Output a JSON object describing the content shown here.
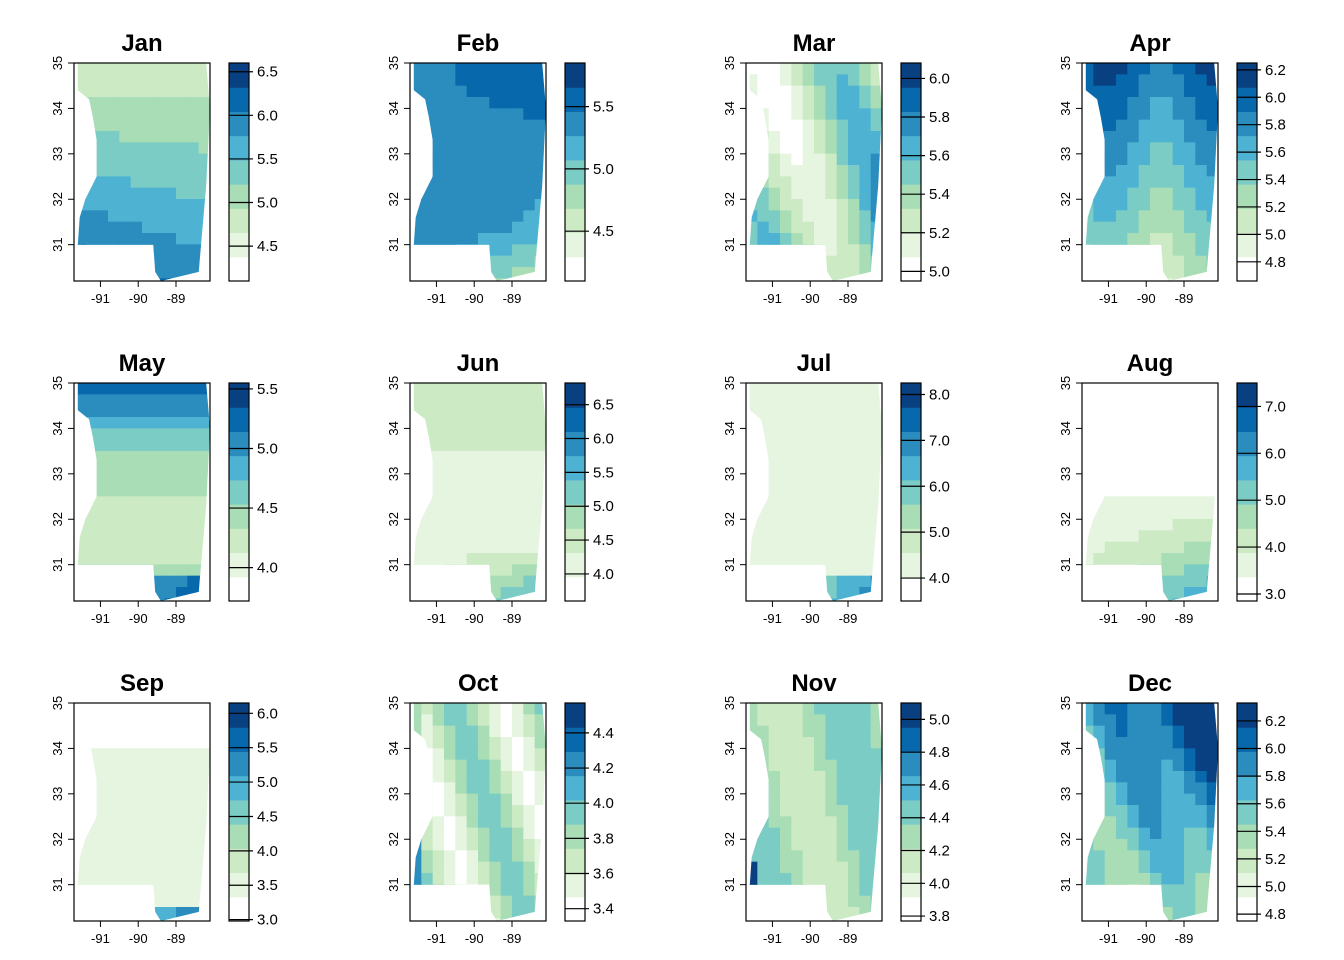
{
  "chart_data": [
    {
      "type": "heatmap",
      "title": "Jan",
      "legend_ticks": [
        "6.5",
        "6.0",
        "5.5",
        "5.0",
        "4.5"
      ],
      "legend_range": [
        4.1,
        6.6
      ],
      "x_ticks": [
        "-91",
        "-90",
        "-89"
      ],
      "y_ticks": [
        "35",
        "34",
        "33",
        "32",
        "31"
      ],
      "xlim": [
        -91.7,
        -88.1
      ],
      "ylim": [
        30.2,
        35
      ]
    },
    {
      "type": "heatmap",
      "title": "Feb",
      "legend_ticks": [
        "5.5",
        "5.0",
        "4.5"
      ],
      "legend_range": [
        4.1,
        5.85
      ],
      "x_ticks": [
        "-91",
        "-90",
        "-89"
      ],
      "y_ticks": [
        "35",
        "34",
        "33",
        "32",
        "31"
      ],
      "xlim": [
        -91.7,
        -88.1
      ],
      "ylim": [
        30.2,
        35
      ]
    },
    {
      "type": "heatmap",
      "title": "Mar",
      "legend_ticks": [
        "6.0",
        "5.8",
        "5.6",
        "5.4",
        "5.2",
        "5.0"
      ],
      "legend_range": [
        4.95,
        6.08
      ],
      "x_ticks": [
        "-91",
        "-90",
        "-89"
      ],
      "y_ticks": [
        "35",
        "34",
        "33",
        "32",
        "31"
      ],
      "xlim": [
        -91.7,
        -88.1
      ],
      "ylim": [
        30.2,
        35
      ]
    },
    {
      "type": "heatmap",
      "title": "Apr",
      "legend_ticks": [
        "6.2",
        "6.0",
        "5.8",
        "5.6",
        "5.4",
        "5.2",
        "5.0",
        "4.8"
      ],
      "legend_range": [
        4.66,
        6.25
      ],
      "x_ticks": [
        "-91",
        "-90",
        "-89"
      ],
      "y_ticks": [
        "35",
        "34",
        "33",
        "32",
        "31"
      ],
      "xlim": [
        -91.7,
        -88.1
      ],
      "ylim": [
        30.2,
        35
      ]
    },
    {
      "type": "heatmap",
      "title": "May",
      "legend_ticks": [
        "5.5",
        "5.0",
        "4.5",
        "4.0"
      ],
      "legend_range": [
        3.72,
        5.55
      ],
      "x_ticks": [
        "-91",
        "-90",
        "-89"
      ],
      "y_ticks": [
        "35",
        "34",
        "33",
        "32",
        "31"
      ],
      "xlim": [
        -91.7,
        -88.1
      ],
      "ylim": [
        30.2,
        35
      ]
    },
    {
      "type": "heatmap",
      "title": "Jun",
      "legend_ticks": [
        "6.5",
        "6.0",
        "5.5",
        "5.0",
        "4.5",
        "4.0"
      ],
      "legend_range": [
        3.6,
        6.82
      ],
      "x_ticks": [
        "-91",
        "-90",
        "-89"
      ],
      "y_ticks": [
        "35",
        "34",
        "33",
        "32",
        "31"
      ],
      "xlim": [
        -91.7,
        -88.1
      ],
      "ylim": [
        30.2,
        35
      ]
    },
    {
      "type": "heatmap",
      "title": "Jul",
      "legend_ticks": [
        "8.0",
        "7.0",
        "6.0",
        "5.0",
        "4.0"
      ],
      "legend_range": [
        3.5,
        8.25
      ],
      "x_ticks": [
        "-91",
        "-90",
        "-89"
      ],
      "y_ticks": [
        "35",
        "34",
        "33",
        "32",
        "31"
      ],
      "xlim": [
        -91.7,
        -88.1
      ],
      "ylim": [
        30.2,
        35
      ]
    },
    {
      "type": "heatmap",
      "title": "Aug",
      "legend_ticks": [
        "7.0",
        "6.0",
        "5.0",
        "4.0",
        "3.0"
      ],
      "legend_range": [
        2.85,
        7.5
      ],
      "x_ticks": [
        "-91",
        "-90",
        "-89"
      ],
      "y_ticks": [
        "35",
        "34",
        "33",
        "32",
        "31"
      ],
      "xlim": [
        -91.7,
        -88.1
      ],
      "ylim": [
        30.2,
        35
      ]
    },
    {
      "type": "heatmap",
      "title": "Sep",
      "legend_ticks": [
        "6.0",
        "5.5",
        "5.0",
        "4.5",
        "4.0",
        "3.5",
        "3.0"
      ],
      "legend_range": [
        2.98,
        6.15
      ],
      "x_ticks": [
        "-91",
        "-90",
        "-89"
      ],
      "y_ticks": [
        "35",
        "34",
        "33",
        "32",
        "31"
      ],
      "xlim": [
        -91.7,
        -88.1
      ],
      "ylim": [
        30.2,
        35
      ]
    },
    {
      "type": "heatmap",
      "title": "Oct",
      "legend_ticks": [
        "4.4",
        "4.2",
        "4.0",
        "3.8",
        "3.6",
        "3.4"
      ],
      "legend_range": [
        3.33,
        4.57
      ],
      "x_ticks": [
        "-91",
        "-90",
        "-89"
      ],
      "y_ticks": [
        "35",
        "34",
        "33",
        "32",
        "31"
      ],
      "xlim": [
        -91.7,
        -88.1
      ],
      "ylim": [
        30.2,
        35
      ]
    },
    {
      "type": "heatmap",
      "title": "Nov",
      "legend_ticks": [
        "5.0",
        "4.8",
        "4.6",
        "4.4",
        "4.2",
        "4.0",
        "3.8"
      ],
      "legend_range": [
        3.77,
        5.1
      ],
      "x_ticks": [
        "-91",
        "-90",
        "-89"
      ],
      "y_ticks": [
        "35",
        "34",
        "33",
        "32",
        "31"
      ],
      "xlim": [
        -91.7,
        -88.1
      ],
      "ylim": [
        30.2,
        35
      ]
    },
    {
      "type": "heatmap",
      "title": "Dec",
      "legend_ticks": [
        "6.2",
        "6.0",
        "5.8",
        "5.6",
        "5.4",
        "5.2",
        "5.0",
        "4.8"
      ],
      "legend_range": [
        4.75,
        6.33
      ],
      "x_ticks": [
        "-91",
        "-90",
        "-89"
      ],
      "y_ticks": [
        "35",
        "34",
        "33",
        "32",
        "31"
      ],
      "xlim": [
        -91.7,
        -88.1
      ],
      "ylim": [
        30.2,
        35
      ]
    }
  ],
  "colors": {
    "palette": [
      "#ffffff",
      "#e5f5e0",
      "#ccebc5",
      "#a8ddb5",
      "#7bccc4",
      "#4eb3d3",
      "#2b8cbe",
      "#0868ac",
      "#084081"
    ],
    "axis": "#000000"
  }
}
